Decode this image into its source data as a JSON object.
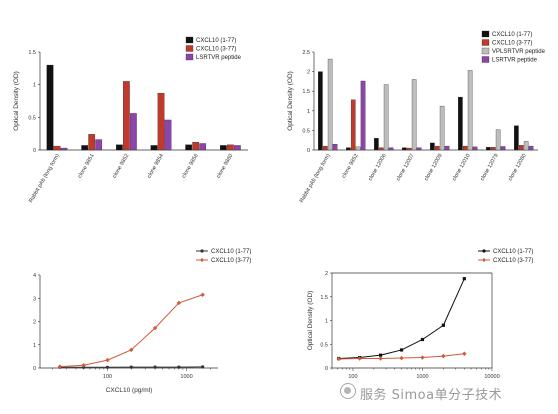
{
  "watermark": {
    "text": "服务 Simoa单分子技术",
    "icon": "wechat-bubble-icon"
  },
  "colors": {
    "black": "#111111",
    "red": "#c0392b",
    "gray": "#bdbdbd",
    "purple": "#8e44ad"
  },
  "chart_data": [
    {
      "type": "bar",
      "ylabel": "Optical Density (OD)",
      "ylim": [
        0,
        1.5
      ],
      "yticks": [
        0,
        0.5,
        1.0,
        1.5
      ],
      "categories": [
        "Rabbit pAb (long form)",
        "clone 9851",
        "clone 9852",
        "clone 9854",
        "clone 9856",
        "clone 9860"
      ],
      "series": [
        {
          "name": "CXCL10 (1-77)",
          "color": "#111111",
          "values": [
            1.3,
            0.07,
            0.08,
            0.07,
            0.08,
            0.07
          ]
        },
        {
          "name": "CXCL10 (3-77)",
          "color": "#c0392b",
          "values": [
            0.06,
            0.24,
            1.05,
            0.87,
            0.12,
            0.08
          ]
        },
        {
          "name": "LSRTVR peptide",
          "color": "#8e44ad",
          "values": [
            0.03,
            0.16,
            0.56,
            0.46,
            0.1,
            0.07
          ]
        }
      ],
      "legend": "top-right"
    },
    {
      "type": "bar",
      "ylabel": "Optical Density (OD)",
      "ylim": [
        0,
        2.5
      ],
      "yticks": [
        0,
        0.5,
        1.0,
        1.5,
        2.0,
        2.5
      ],
      "categories": [
        "Rabbit pAb (long form)",
        "clone 9852",
        "clone 12006",
        "clone 12007",
        "clone 12009",
        "clone 12010",
        "clone 12079",
        "clone 12080"
      ],
      "series": [
        {
          "name": "CXCL10 (1-77)",
          "color": "#111111",
          "values": [
            2.0,
            0.06,
            0.3,
            0.06,
            0.18,
            1.35,
            0.07,
            0.62
          ]
        },
        {
          "name": "CXCL10 (3-77)",
          "color": "#c0392b",
          "values": [
            0.1,
            1.28,
            0.06,
            0.05,
            0.1,
            0.1,
            0.07,
            0.12
          ]
        },
        {
          "name": "VPLSRTVR peptide",
          "color": "#bdbdbd",
          "values": [
            2.32,
            0.08,
            1.67,
            1.8,
            1.12,
            2.03,
            0.52,
            0.22
          ]
        },
        {
          "name": "LSRTVR peptide",
          "color": "#8e44ad",
          "values": [
            0.15,
            1.76,
            0.06,
            0.06,
            0.1,
            0.08,
            0.09,
            0.1
          ]
        }
      ],
      "legend": "top-right"
    },
    {
      "type": "line",
      "xlabel": "CXCL10 (pg/ml)",
      "ylim": [
        0,
        4
      ],
      "yticks": [
        0,
        1,
        2,
        3,
        4
      ],
      "xscale": "log",
      "xlim": [
        14,
        2500
      ],
      "xticks": [
        100,
        1000
      ],
      "series": [
        {
          "name": "CXCL10 (1-77)",
          "color": "#333333",
          "marker": "circle",
          "x": [
            25,
            50,
            100,
            200,
            400,
            800,
            1600
          ],
          "y": [
            0.03,
            0.03,
            0.03,
            0.04,
            0.04,
            0.04,
            0.05
          ]
        },
        {
          "name": "CXCL10 (3-77)",
          "color": "#d05a3a",
          "marker": "diamond",
          "x": [
            25,
            50,
            100,
            200,
            400,
            800,
            1600
          ],
          "y": [
            0.06,
            0.12,
            0.34,
            0.78,
            1.72,
            2.8,
            3.15
          ]
        }
      ],
      "legend": "top-right"
    },
    {
      "type": "line",
      "ylabel": "Optical Density (OD)",
      "ylim": [
        0,
        2.0
      ],
      "yticks": [
        0,
        0.5,
        1.0,
        1.5,
        2.0
      ],
      "xscale": "log",
      "xlim": [
        50,
        10000
      ],
      "xticks": [
        100,
        1000,
        10000
      ],
      "series": [
        {
          "name": "CXCL10 (1-77)",
          "color": "#111111",
          "marker": "square",
          "x": [
            62.5,
            125,
            250,
            500,
            1000,
            2000,
            4000
          ],
          "y": [
            0.2,
            0.22,
            0.27,
            0.38,
            0.6,
            0.9,
            1.88
          ]
        },
        {
          "name": "CXCL10 (3-77)",
          "color": "#d05a3a",
          "marker": "diamond",
          "x": [
            62.5,
            125,
            250,
            500,
            1000,
            2000,
            4000
          ],
          "y": [
            0.19,
            0.2,
            0.2,
            0.21,
            0.22,
            0.25,
            0.3
          ]
        }
      ],
      "legend": "top-right"
    }
  ]
}
